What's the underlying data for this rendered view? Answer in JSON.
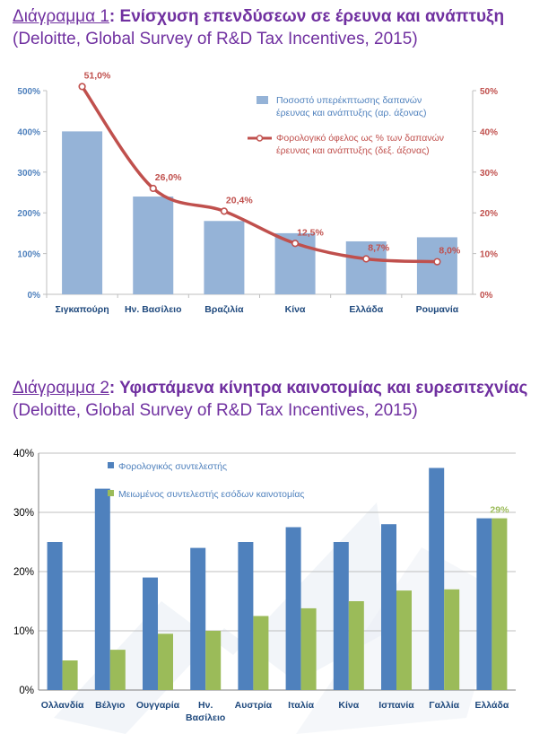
{
  "colors": {
    "title": "#7030a0",
    "bar1": "#95b3d7",
    "line1": "#c0504d",
    "axis_left1": "#4f81bd",
    "axis_right1": "#c0504d",
    "bar_blue": "#4f81bd",
    "bar_green": "#9bbb59",
    "cat_text": "#1f497d"
  },
  "chart1_title": {
    "prefix": "Διάγραμμα 1",
    "text": ": Ενίσχυση επενδύσεων σε έρευνα και ανάπτυξη",
    "source": "(Deloitte, Global Survey of R&D Tax Incentives, 2015)"
  },
  "chart2_title": {
    "prefix": "Διάγραμμα 2",
    "text": ": Υφιστάμενα κίνητρα καινοτομίας και ευρεσιτεχνίας",
    "source": "(Deloitte, Global Survey of R&D Tax Incentives, 2015)"
  },
  "chart_data": [
    {
      "type": "bar",
      "categories": [
        "Σιγκαπούρη",
        "Ην. Βασίλειο",
        "Βραζιλία",
        "Κίνα",
        "Ελλάδα",
        "Ρουμανία"
      ],
      "series": [
        {
          "name": "Ποσοστό υπερέκπτωσης δαπανών έρευνας και ανάπτυξης (αρ. άξονας)",
          "kind": "bar",
          "axis": "left",
          "values": [
            400,
            240,
            180,
            150,
            130,
            140
          ]
        },
        {
          "name": "Φορολογικό όφελος ως % των δαπανών έρευνας και ανάπτυξης (δεξ. άξονας)",
          "kind": "line",
          "axis": "right",
          "values": [
            51.0,
            26.0,
            20.4,
            12.5,
            8.7,
            8.0
          ],
          "labels": [
            "51,0%",
            "26,0%",
            "20,4%",
            "12,5%",
            "8,7%",
            "8,0%"
          ]
        }
      ],
      "legend": [
        "Ποσοστό υπερέκπτωσης δαπανών",
        "έρευνας και ανάπτυξης (αρ. άξονας)",
        "Φορολογικό όφελος ως % των δαπανών",
        "έρευνας και ανάπτυξης (δεξ. άξονας)"
      ],
      "ylim_left": [
        0,
        500
      ],
      "yticks_left": [
        "0%",
        "100%",
        "200%",
        "300%",
        "400%",
        "500%"
      ],
      "ylim_right": [
        0,
        50
      ],
      "yticks_right": [
        "0%",
        "10%",
        "20%",
        "30%",
        "40%",
        "50%"
      ],
      "grid": false,
      "legend_position": "top-right"
    },
    {
      "type": "bar",
      "categories": [
        "Ολλανδία",
        "Βέλγιο",
        "Ουγγαρία",
        "Ην. Βασίλειο",
        "Αυστρία",
        "Ιταλία",
        "Κίνα",
        "Ισπανία",
        "Γαλλία",
        "Ελλάδα"
      ],
      "category_lines": [
        [
          "Ολλανδία"
        ],
        [
          "Βέλγιο"
        ],
        [
          "Ουγγαρία"
        ],
        [
          "Ην.",
          "Βασίλειο"
        ],
        [
          "Αυστρία"
        ],
        [
          "Ιταλία"
        ],
        [
          "Κίνα"
        ],
        [
          "Ισπανία"
        ],
        [
          "Γαλλία"
        ],
        [
          "Ελλάδα"
        ]
      ],
      "series": [
        {
          "name": "Φορολογικός συντελεστής",
          "values": [
            25,
            34,
            19,
            24,
            25,
            27.5,
            25,
            28,
            37.5,
            29
          ]
        },
        {
          "name": "Μειωμένος συντελεστής εσόδων καινοτομίας",
          "values": [
            5,
            6.8,
            9.5,
            10,
            12.5,
            13.8,
            15,
            16.8,
            17,
            29
          ]
        }
      ],
      "annotation": "29%",
      "ylim": [
        0,
        40
      ],
      "yticks": [
        "0%",
        "10%",
        "20%",
        "30%",
        "40%"
      ],
      "grid": true,
      "legend_position": "top"
    }
  ]
}
